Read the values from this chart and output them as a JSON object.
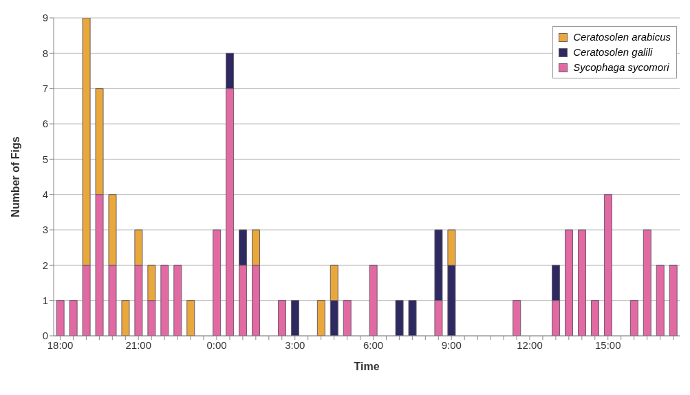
{
  "chart_data": {
    "type": "bar",
    "stacked": true,
    "xlabel": "Time",
    "ylabel": "Number of Figs",
    "categories": [
      "18:00",
      null,
      null,
      null,
      null,
      null,
      "21:00",
      null,
      null,
      null,
      null,
      null,
      "0:00",
      null,
      null,
      null,
      null,
      null,
      "3:00",
      null,
      null,
      null,
      null,
      null,
      "6:00",
      null,
      null,
      null,
      null,
      null,
      "9:00",
      null,
      null,
      null,
      null,
      null,
      "12:00",
      null,
      null,
      null,
      null,
      null,
      "15:00",
      null,
      null,
      null,
      null,
      null
    ],
    "series": [
      {
        "name": "Sycophaga sycomori",
        "color": "#e26aa3",
        "values": [
          1,
          1,
          2,
          4,
          2,
          0,
          2,
          1,
          2,
          2,
          0,
          0,
          3,
          7,
          2,
          2,
          0,
          1,
          0,
          0,
          0,
          0,
          1,
          0,
          2,
          0,
          0,
          0,
          0,
          1,
          0,
          0,
          0,
          0,
          0,
          1,
          0,
          0,
          1,
          3,
          3,
          1,
          4,
          0,
          1,
          3,
          2,
          2
        ]
      },
      {
        "name": "Ceratosolen galili",
        "color": "#2c2a60",
        "values": [
          0,
          0,
          0,
          0,
          0,
          0,
          0,
          0,
          0,
          0,
          0,
          0,
          0,
          1,
          1,
          0,
          0,
          0,
          1,
          0,
          0,
          1,
          0,
          0,
          0,
          0,
          1,
          1,
          0,
          2,
          2,
          0,
          0,
          0,
          0,
          0,
          0,
          0,
          1,
          0,
          0,
          0,
          0,
          0,
          0,
          0,
          0,
          0
        ]
      },
      {
        "name": "Ceratosolen arabicus",
        "color": "#e9a83c",
        "values": [
          0,
          0,
          7,
          3,
          2,
          1,
          1,
          1,
          0,
          0,
          1,
          0,
          0,
          0,
          0,
          1,
          0,
          0,
          0,
          0,
          1,
          1,
          0,
          0,
          0,
          0,
          0,
          0,
          0,
          0,
          1,
          0,
          0,
          0,
          0,
          0,
          0,
          0,
          0,
          0,
          0,
          0,
          0,
          0,
          0,
          0,
          0,
          0
        ]
      }
    ],
    "ylim": [
      0,
      9
    ],
    "yticks": [
      0,
      1,
      2,
      3,
      4,
      5,
      6,
      7,
      8,
      9
    ],
    "grid": "y",
    "legend": "top right"
  }
}
